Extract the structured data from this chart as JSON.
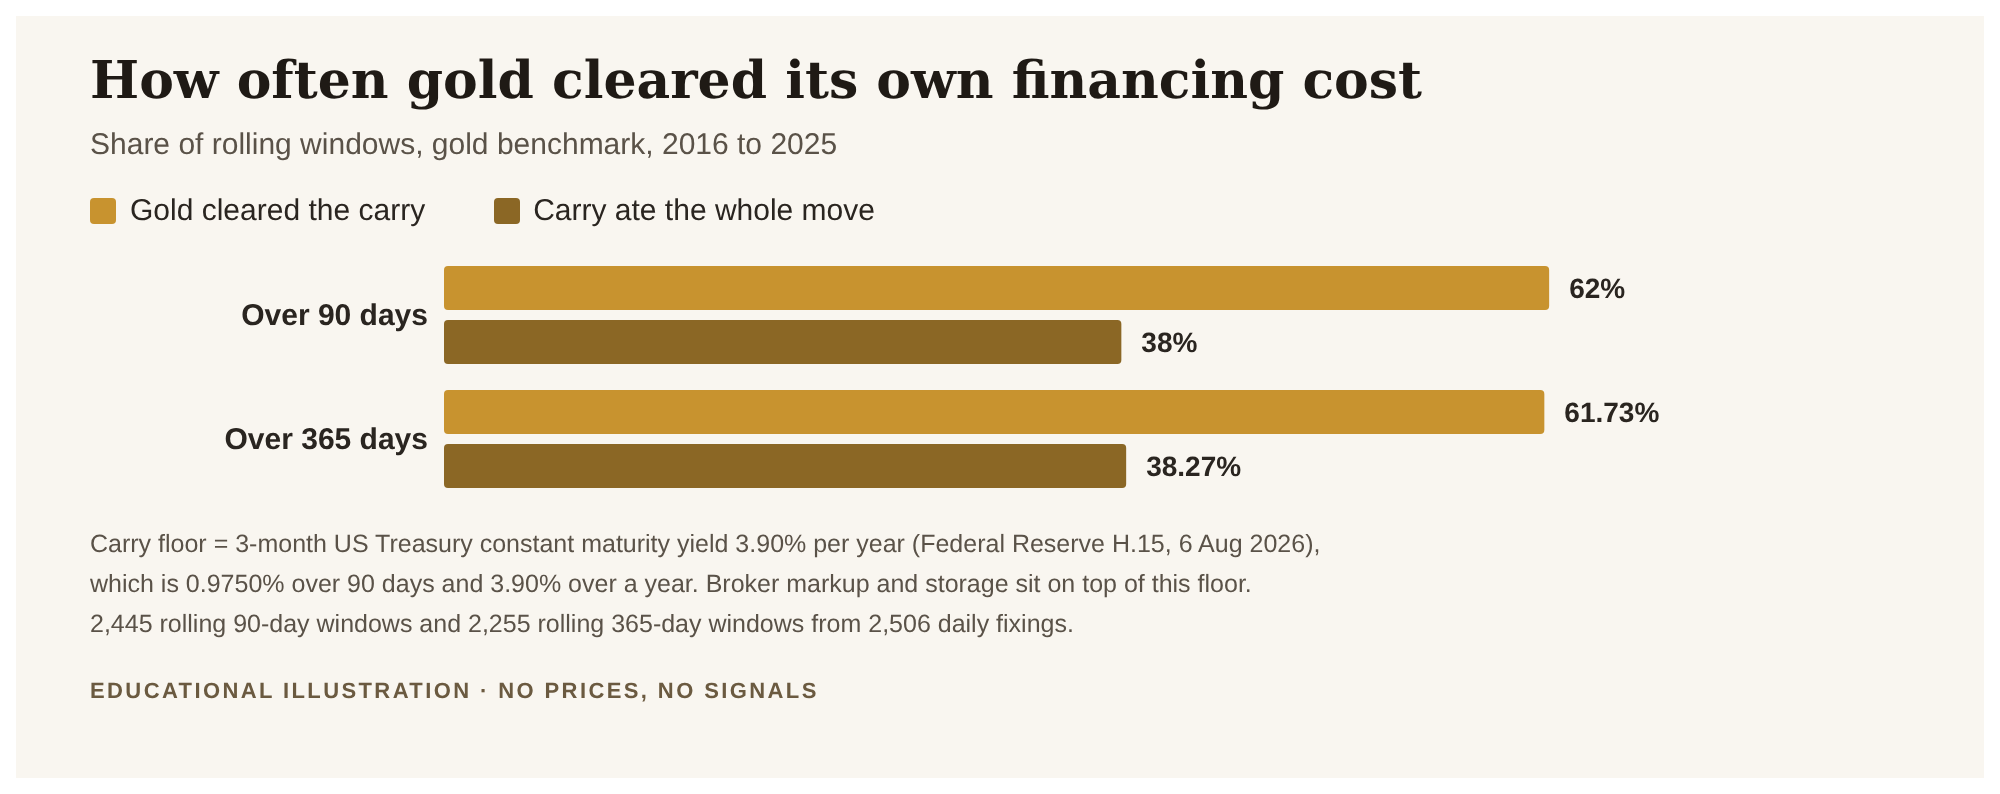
{
  "chart_data": {
    "type": "bar",
    "orientation": "horizontal",
    "title": "How often gold cleared its own financing cost",
    "subtitle": "Share of rolling windows, gold benchmark, 2016 to 2025",
    "categories": [
      "Over 90 days",
      "Over 365 days"
    ],
    "series": [
      {
        "name": "Gold cleared the carry",
        "color": "#c8932f",
        "values": [
          62,
          61.73
        ],
        "value_labels": [
          "62%",
          "61.73%"
        ]
      },
      {
        "name": "Carry ate the whole move",
        "color": "#8b6725",
        "values": [
          38,
          38.27
        ],
        "value_labels": [
          "38%",
          "38.27%"
        ]
      }
    ],
    "legend": "top left",
    "grid": false,
    "tick_labels": "y",
    "annotations": [
      "Carry floor = 3-month US Treasury constant maturity yield 3.90% per year (Federal Reserve H.15, 6 Aug 2026),",
      "which is 0.9750% over 90 days and 3.90% over a year. Broker markup and storage sit on top of this floor.",
      "2,445 rolling 90-day windows and 2,255 rolling 365-day windows from 2,506 daily fixings.",
      "EDUCATIONAL ILLUSTRATION · NO PRICES, NO SIGNALS"
    ]
  }
}
